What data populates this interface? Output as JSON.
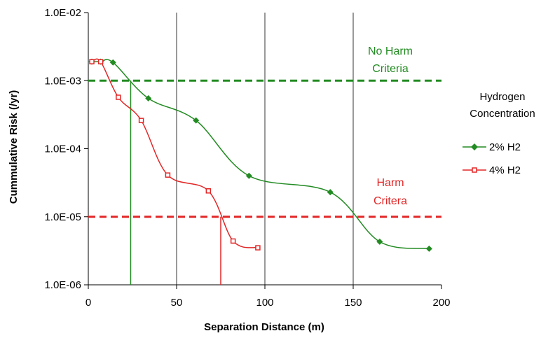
{
  "chart_data": {
    "type": "line",
    "xlabel": "Separation Distance (m)",
    "ylabel": "Cummulative Risk (/yr)",
    "xlim": [
      0,
      200
    ],
    "ylim": [
      1e-06,
      0.01
    ],
    "yscale": "log",
    "xticks": [
      0,
      50,
      100,
      150,
      200
    ],
    "xtick_labels": [
      "0",
      "50",
      "100",
      "150",
      "200"
    ],
    "yticks": [
      1e-06,
      1e-05,
      0.0001,
      0.001,
      0.01
    ],
    "ytick_labels": [
      "1.0E-06",
      "1.0E-05",
      "1.0E-04",
      "1.0E-03",
      "1.0E-02"
    ],
    "gridlines_x": [
      50,
      100,
      150
    ],
    "legend": {
      "title": "Hydrogen Concentration",
      "title_lines": [
        "Hydrogen",
        "Concentration"
      ],
      "placement": "right"
    },
    "series": [
      {
        "name": "2% H2",
        "color": "#228B22",
        "marker": "diamond",
        "x": [
          2,
          7,
          14,
          34,
          61,
          91,
          137,
          165,
          193
        ],
        "y": [
          0.0019,
          0.0019,
          0.00185,
          0.00055,
          0.00026,
          4e-05,
          2.3e-05,
          4.3e-06,
          3.4e-06
        ]
      },
      {
        "name": "4% H2",
        "color": "#e32626",
        "marker": "square",
        "x": [
          2,
          7,
          17,
          30,
          45,
          68,
          82,
          96
        ],
        "y": [
          0.0019,
          0.0019,
          0.00057,
          0.00026,
          4.1e-05,
          2.4e-05,
          4.4e-06,
          3.5e-06
        ]
      }
    ],
    "reference_lines": [
      {
        "label_lines": [
          "No Harm",
          "Criteria"
        ],
        "value": 0.001,
        "color": "#228B22"
      },
      {
        "label_lines": [
          "Harm",
          "Critera"
        ],
        "value": 1e-05,
        "color": "#e32626"
      }
    ],
    "vertical_markers": [
      {
        "x": 24,
        "color": "#228B22"
      },
      {
        "x": 75,
        "color": "#e32626"
      }
    ]
  }
}
